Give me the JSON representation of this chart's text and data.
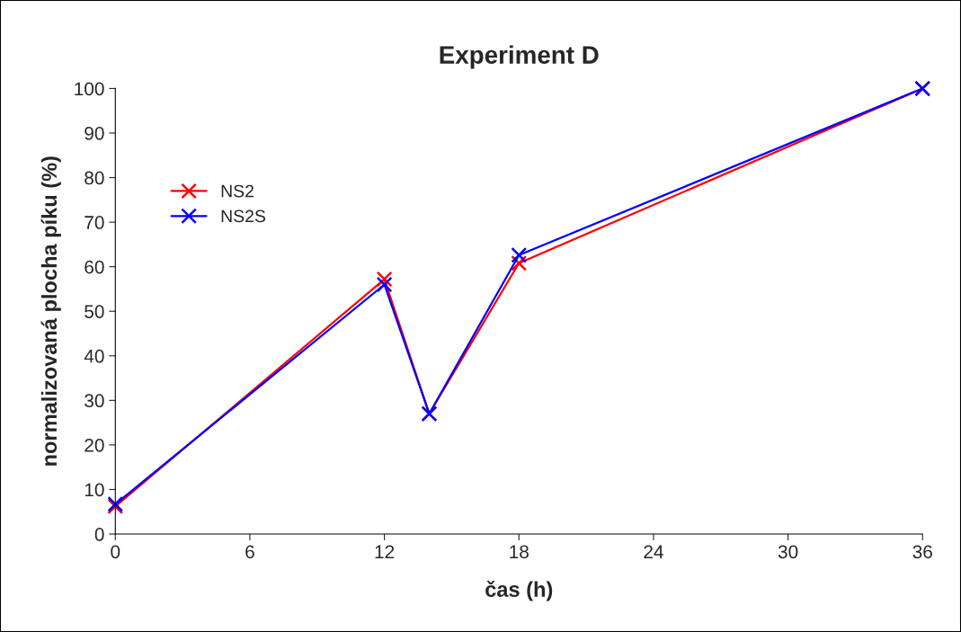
{
  "chart_data": {
    "type": "line",
    "title": "Experiment D",
    "xlabel": "čas (h)",
    "ylabel": "normalizovaná plocha píku (%)",
    "x": [
      0,
      12,
      14,
      18,
      36
    ],
    "series": [
      {
        "name": "NS2",
        "color": "#ff0000",
        "values": [
          6.2,
          57.2,
          27,
          60.8,
          100
        ]
      },
      {
        "name": "NS2S",
        "color": "#0000ff",
        "values": [
          6.7,
          56,
          27,
          62.6,
          100
        ]
      }
    ],
    "xlim": [
      0,
      36
    ],
    "xticks": [
      0,
      6,
      12,
      18,
      24,
      30,
      36
    ],
    "ylim": [
      0,
      100
    ],
    "yticks": [
      0,
      10,
      20,
      30,
      40,
      50,
      60,
      70,
      80,
      90,
      100
    ],
    "grid": false,
    "legend": "top left",
    "marker": "cross",
    "line_style": "solid"
  }
}
